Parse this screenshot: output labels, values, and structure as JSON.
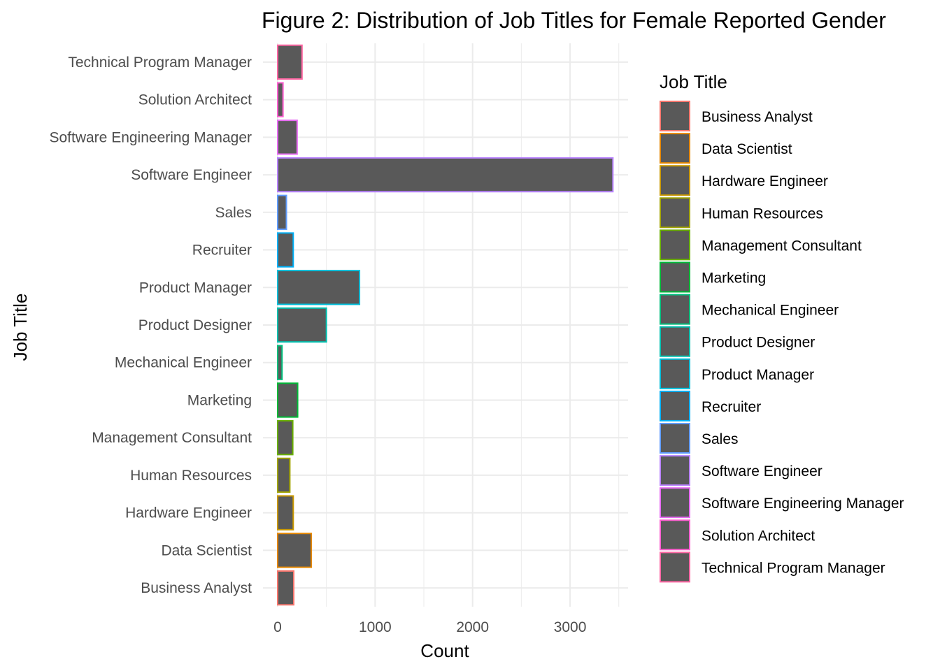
{
  "chart_data": {
    "type": "bar",
    "orientation": "horizontal",
    "title": "Figure 2: Distribution of Job Titles for Female Reported Gender",
    "xlabel": "Count",
    "ylabel": "Job Title",
    "xlim": [
      -150,
      3600
    ],
    "x_ticks": [
      0,
      1000,
      2000,
      3000
    ],
    "x_tick_labels": [
      "0",
      "1000",
      "2000",
      "3000"
    ],
    "grid": true,
    "fill_color": "#595959",
    "legend": {
      "title": "Job Title",
      "placement": "right"
    },
    "categories": [
      "Business Analyst",
      "Data Scientist",
      "Hardware Engineer",
      "Human Resources",
      "Management Consultant",
      "Marketing",
      "Mechanical Engineer",
      "Product Designer",
      "Product Manager",
      "Recruiter",
      "Sales",
      "Software Engineer",
      "Software Engineering Manager",
      "Solution Architect",
      "Technical Program Manager"
    ],
    "values": [
      165,
      345,
      160,
      125,
      155,
      205,
      45,
      500,
      840,
      160,
      90,
      3440,
      200,
      55,
      250
    ],
    "colors": [
      "#F8766D",
      "#E58700",
      "#C99800",
      "#A3A500",
      "#6BB100",
      "#00BA38",
      "#00BF7D",
      "#00C0AF",
      "#00BCD8",
      "#00B0F6",
      "#619CFF",
      "#B983FF",
      "#E76BF3",
      "#FD61D1",
      "#FF67A4"
    ]
  }
}
